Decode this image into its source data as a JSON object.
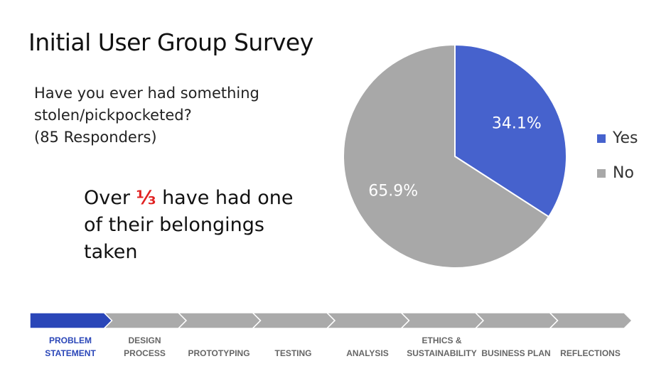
{
  "slide": {
    "title": "Initial User Group Survey",
    "question_lines": [
      "Have you ever had something",
      "stolen/pickpocketed?",
      "(85 Responders)"
    ],
    "takeaway": {
      "line1_before": "Over ",
      "fraction": "⅓",
      "line1_after": " have had one",
      "line2": "of their belongings",
      "line3": "taken"
    }
  },
  "chart_data": {
    "type": "pie",
    "slices": [
      {
        "label": "Yes",
        "value": 34.1,
        "display": "34.1%",
        "color": "#4662cd"
      },
      {
        "label": "No",
        "value": 65.9,
        "display": "65.9%",
        "color": "#a8a8a8"
      }
    ],
    "legend_position": "right",
    "start": "top",
    "direction": "clockwise"
  },
  "progress": {
    "active_index": 0,
    "active_color": "#2a46b8",
    "inactive_color": "#aaaaaa",
    "steps": [
      {
        "lines": [
          "PROBLEM",
          "STATEMENT"
        ]
      },
      {
        "lines": [
          "DESIGN",
          "PROCESS"
        ]
      },
      {
        "lines": [
          "",
          "PROTOTYPING"
        ]
      },
      {
        "lines": [
          "",
          "TESTING"
        ]
      },
      {
        "lines": [
          "",
          "ANALYSIS"
        ]
      },
      {
        "lines": [
          "ETHICS &",
          "SUSTAINABILITY"
        ]
      },
      {
        "lines": [
          "",
          "BUSINESS PLAN"
        ]
      },
      {
        "lines": [
          "",
          "REFLECTIONS"
        ]
      }
    ]
  }
}
